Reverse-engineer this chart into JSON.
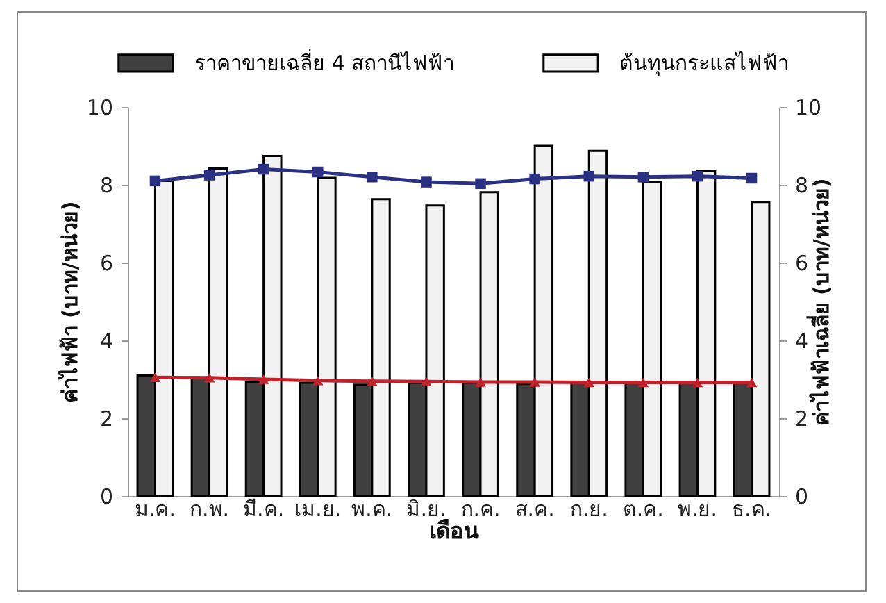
{
  "chart_data": {
    "type": "bar",
    "xlabel": "เดือน",
    "ylabel": "ค่าไฟฟ้า (บาท/หน่วย)",
    "y2label": "ค่าไฟฟ้าเฉลี่ย (บาท/หน่วย)",
    "categories": [
      "ม.ค.",
      "ก.พ.",
      "มี.ค.",
      "เม.ย.",
      "พ.ค.",
      "มิ.ย.",
      "ก.ค.",
      "ส.ค.",
      "ก.ย.",
      "ต.ค.",
      "พ.ย.",
      "ธ.ค."
    ],
    "series": [
      {
        "name": "ราคาขายเฉลี่ย 4 สถานีไฟฟ้า",
        "color": "#404040",
        "values": [
          3.1,
          3.05,
          2.93,
          2.91,
          2.86,
          2.91,
          2.91,
          2.88,
          2.93,
          2.93,
          2.91,
          2.91
        ]
      },
      {
        "name": "ต้นทุนกระแสไฟฟ้า",
        "color": "#f2f2f2",
        "values": [
          8.1,
          8.42,
          8.74,
          8.18,
          7.63,
          7.47,
          7.81,
          9.0,
          8.87,
          8.07,
          8.35,
          7.56
        ]
      },
      {
        "type": "line",
        "axis": "y2",
        "marker": "square",
        "color": "#2b3284",
        "values": [
          8.1,
          8.25,
          8.4,
          8.33,
          8.2,
          8.07,
          8.03,
          8.15,
          8.22,
          8.2,
          8.22,
          8.17
        ]
      },
      {
        "type": "line",
        "axis": "y2",
        "marker": "triangle",
        "color": "#c0222c",
        "values": [
          3.05,
          3.04,
          3.0,
          2.97,
          2.95,
          2.94,
          2.93,
          2.93,
          2.92,
          2.92,
          2.92,
          2.92
        ]
      }
    ],
    "ylim": [
      0,
      10
    ],
    "yticks": [
      0,
      2,
      4,
      6,
      8,
      10
    ],
    "y2lim": [
      0,
      10
    ],
    "y2ticks": [
      0,
      2,
      4,
      6,
      8,
      10
    ],
    "grid": false,
    "legend": "top"
  }
}
